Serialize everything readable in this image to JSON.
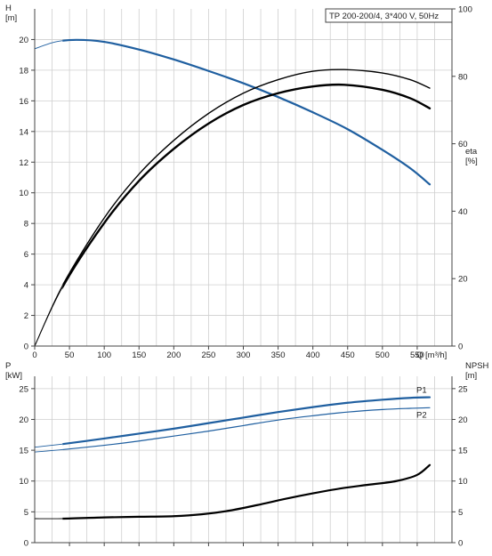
{
  "chart_data": [
    {
      "type": "line",
      "legend_title": "TP 200-200/4, 3*400 V, 50Hz",
      "xlabel": "Q [m³/h]",
      "xlim": [
        0,
        600
      ],
      "xticks": [
        0,
        50,
        100,
        150,
        200,
        250,
        300,
        350,
        400,
        450,
        500,
        550
      ],
      "ylabel_left": [
        "H",
        "[m]"
      ],
      "ylim_left": [
        0,
        22
      ],
      "yticks_left": [
        0,
        2,
        4,
        6,
        8,
        10,
        12,
        14,
        16,
        18,
        20
      ],
      "ylabel_right": [
        "eta",
        "[%]"
      ],
      "ylim_right": [
        0,
        100
      ],
      "yticks_right": [
        0,
        20,
        40,
        60,
        80,
        100
      ],
      "grid": true,
      "series": [
        {
          "axis": "left",
          "color": "#1f5fa0",
          "width": 2.2,
          "x": [
            0,
            30,
            60,
            100,
            150,
            200,
            250,
            300,
            350,
            400,
            450,
            500,
            540,
            568
          ],
          "y": [
            19.4,
            19.85,
            19.98,
            19.85,
            19.35,
            18.7,
            17.95,
            17.15,
            16.25,
            15.25,
            14.15,
            12.8,
            11.6,
            10.55
          ],
          "x_thin_end": 40
        },
        {
          "axis": "right",
          "color": "#000000",
          "width": 1.4,
          "x": [
            0,
            40,
            100,
            150,
            200,
            250,
            300,
            350,
            400,
            445,
            500,
            540,
            568
          ],
          "y": [
            0,
            18,
            38,
            51,
            61,
            69,
            75,
            79,
            81.5,
            82,
            81,
            79,
            76.5
          ],
          "x_thin_end": 40
        },
        {
          "axis": "right",
          "color": "#000000",
          "width": 2.4,
          "x": [
            0,
            40,
            100,
            150,
            200,
            250,
            300,
            350,
            400,
            445,
            500,
            540,
            568
          ],
          "y": [
            0,
            17.5,
            36.5,
            49,
            58.5,
            66,
            71.5,
            75,
            77,
            77.5,
            76,
            73.5,
            70.5
          ],
          "x_thin_end": 40
        }
      ]
    },
    {
      "type": "line",
      "xlim": [
        0,
        600
      ],
      "xticks": [
        50,
        100,
        150,
        200,
        250,
        300,
        350,
        400,
        450,
        500,
        550
      ],
      "ylabel_left": [
        "P",
        "[kW]"
      ],
      "ylim_left": [
        0,
        27
      ],
      "yticks_left": [
        0,
        5,
        10,
        15,
        20,
        25
      ],
      "ylabel_right": [
        "NPSH",
        "[m]"
      ],
      "ylim_right": [
        0,
        27
      ],
      "yticks_right": [
        0,
        5,
        10,
        15,
        20,
        25
      ],
      "grid": true,
      "series": [
        {
          "name": "P1",
          "axis": "left",
          "color": "#1f5fa0",
          "width": 2.2,
          "x": [
            0,
            40,
            100,
            150,
            200,
            250,
            300,
            350,
            400,
            450,
            500,
            540,
            568
          ],
          "y": [
            15.5,
            16.0,
            16.9,
            17.7,
            18.5,
            19.4,
            20.3,
            21.2,
            22.0,
            22.7,
            23.2,
            23.5,
            23.6
          ],
          "x_thin_end": 40
        },
        {
          "name": "P2",
          "axis": "left",
          "color": "#1f5fa0",
          "width": 1.2,
          "x": [
            0,
            40,
            100,
            150,
            200,
            250,
            300,
            350,
            400,
            450,
            500,
            540,
            568
          ],
          "y": [
            14.7,
            15.1,
            15.8,
            16.5,
            17.3,
            18.1,
            19.0,
            19.9,
            20.6,
            21.2,
            21.6,
            21.8,
            21.9
          ],
          "x_thin_end": 40
        },
        {
          "axis": "right",
          "color": "#000000",
          "width": 2.2,
          "x": [
            0,
            40,
            100,
            150,
            200,
            240,
            280,
            320,
            360,
            400,
            440,
            480,
            520,
            550,
            568
          ],
          "y": [
            3.9,
            3.9,
            4.1,
            4.2,
            4.3,
            4.6,
            5.2,
            6.1,
            7.1,
            8.0,
            8.8,
            9.4,
            10.0,
            11.0,
            12.6
          ],
          "x_thin_end": 40
        }
      ]
    }
  ]
}
